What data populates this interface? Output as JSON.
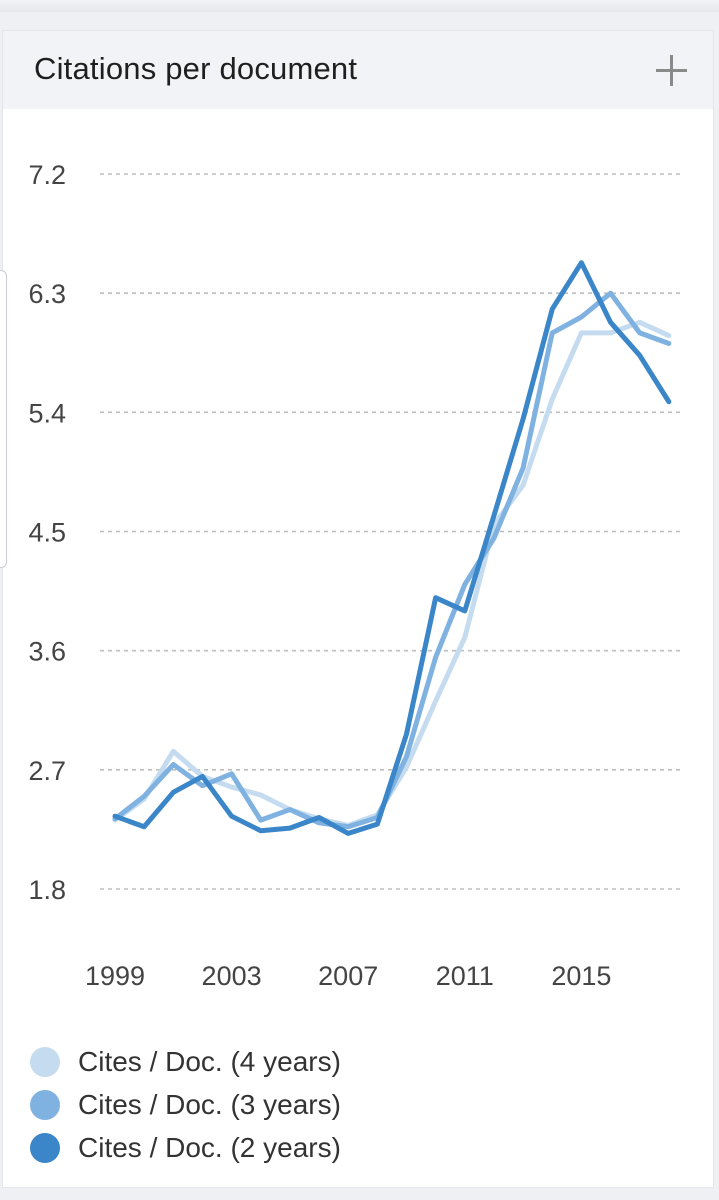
{
  "card": {
    "title": "Citations per document"
  },
  "chart_data": {
    "type": "line",
    "title": "Citations per document",
    "xlabel": "",
    "ylabel": "",
    "ylim": [
      1.8,
      7.2
    ],
    "yticks": [
      "1.8",
      "2.7",
      "3.6",
      "4.5",
      "5.4",
      "6.3",
      "7.2"
    ],
    "xticks": [
      1999,
      2003,
      2007,
      2011,
      2015
    ],
    "grid": true,
    "legend_position": "bottom-left",
    "x": [
      1999,
      2000,
      2001,
      2002,
      2003,
      2004,
      2005,
      2006,
      2007,
      2008,
      2009,
      2010,
      2011,
      2012,
      2013,
      2014,
      2015,
      2016,
      2017,
      2018
    ],
    "series": [
      {
        "name": "Cites / Doc. (4 years)",
        "color": "#c5dcf0",
        "values": [
          2.32,
          2.48,
          2.84,
          2.65,
          2.57,
          2.51,
          2.4,
          2.33,
          2.28,
          2.36,
          2.72,
          3.22,
          3.7,
          4.55,
          4.85,
          5.5,
          6.0,
          6.0,
          6.08,
          5.98
        ]
      },
      {
        "name": "Cites / Doc. (3 years)",
        "color": "#7fb2e0",
        "values": [
          2.33,
          2.5,
          2.74,
          2.58,
          2.67,
          2.32,
          2.4,
          2.3,
          2.27,
          2.34,
          2.8,
          3.55,
          4.1,
          4.45,
          4.98,
          6.0,
          6.12,
          6.3,
          6.0,
          5.92
        ]
      },
      {
        "name": "Cites / Doc. (2 years)",
        "color": "#3a86c8",
        "values": [
          2.35,
          2.27,
          2.53,
          2.65,
          2.35,
          2.24,
          2.26,
          2.34,
          2.22,
          2.29,
          2.97,
          4.0,
          3.9,
          4.62,
          5.35,
          6.18,
          6.53,
          6.08,
          5.83,
          5.48
        ]
      }
    ]
  }
}
